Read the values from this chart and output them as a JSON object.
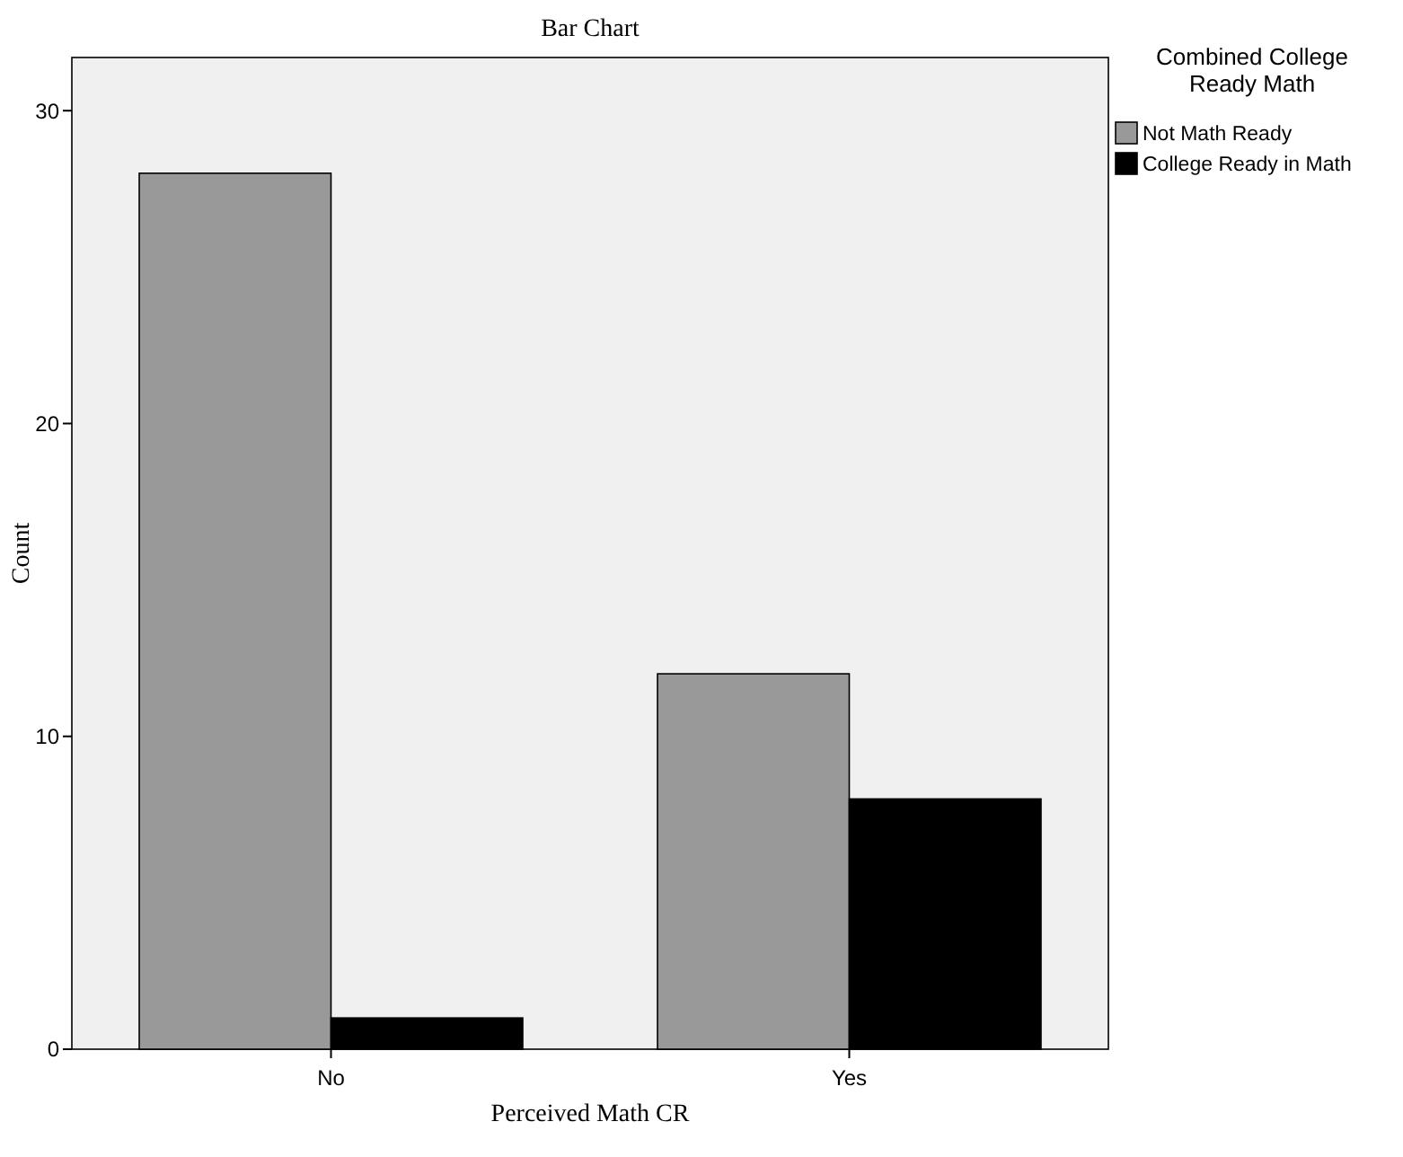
{
  "chart_data": {
    "type": "bar",
    "title": "Bar Chart",
    "xlabel": "Perceived Math CR",
    "ylabel": "Count",
    "legend_title": "Combined College Ready Math",
    "categories": [
      "No",
      "Yes"
    ],
    "series": [
      {
        "name": "Not Math Ready",
        "color": "#999999",
        "values": [
          28,
          12
        ]
      },
      {
        "name": "College Ready in Math",
        "color": "#000000",
        "values": [
          1,
          8
        ]
      }
    ],
    "ylim": [
      0,
      31.7
    ],
    "yticks": [
      0,
      10,
      20,
      30
    ],
    "grid": false,
    "legend": "top right"
  }
}
